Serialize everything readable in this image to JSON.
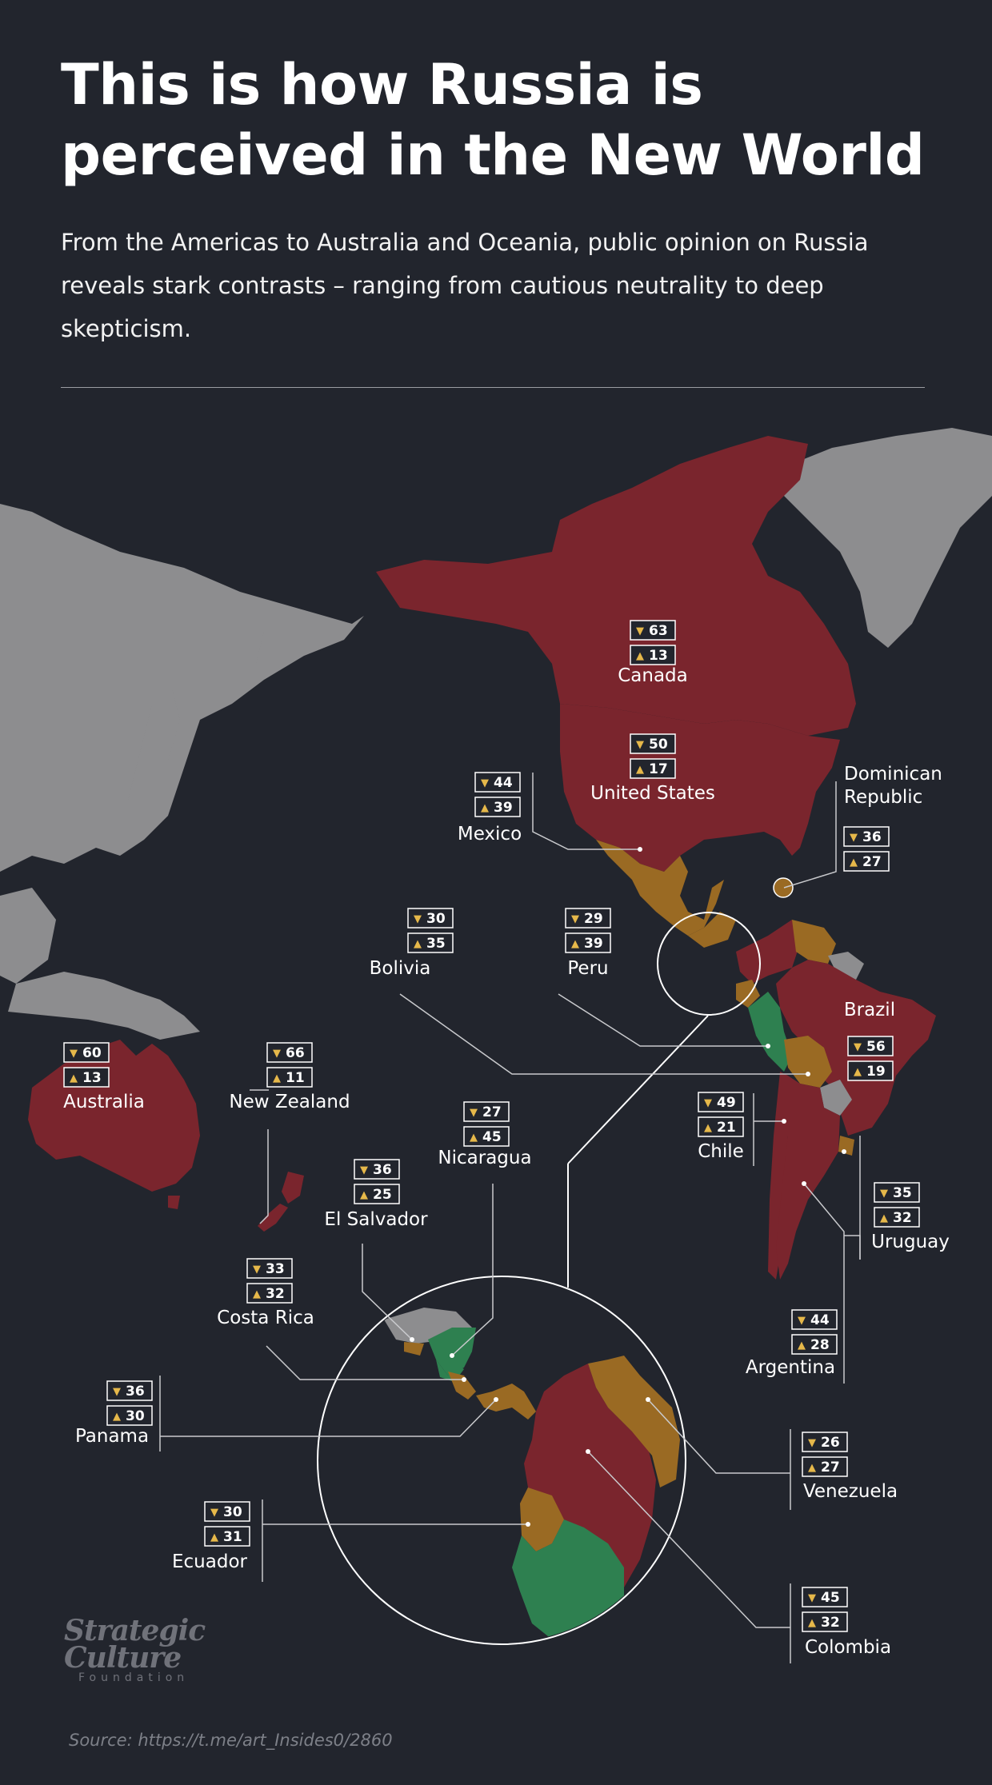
{
  "title_line1": "This is how Russia is",
  "title_line2": "perceived in the New World",
  "subtitle": "From the Americas to Australia and Oceania, public opinion on Russia reveals stark contrasts – ranging from cautious neutrality to deep skepticism.",
  "logo": {
    "line1": "Strategic",
    "line2": "Culture",
    "line3": "Foundation"
  },
  "source": "Source: https://t.me/art_Insides0/2860",
  "colors": {
    "negative": "#7a252d",
    "mixed": "#9a6a23",
    "positive": "#2e8050",
    "no_data": "#8d8d8f",
    "background": "#22252d",
    "thumb_icon": "#e6b84a"
  },
  "icons": {
    "dislike": "thumbs-down-icon",
    "like": "thumbs-up-icon"
  },
  "countries": [
    {
      "name": "Canada",
      "negative": 63,
      "positive": 13
    },
    {
      "name": "United States",
      "negative": 50,
      "positive": 17
    },
    {
      "name": "Mexico",
      "negative": 44,
      "positive": 39
    },
    {
      "name": "Dominican Republic",
      "negative": 36,
      "positive": 27
    },
    {
      "name": "Bolivia",
      "negative": 30,
      "positive": 35
    },
    {
      "name": "Peru",
      "negative": 29,
      "positive": 39
    },
    {
      "name": "Brazil",
      "negative": 56,
      "positive": 19
    },
    {
      "name": "Australia",
      "negative": 60,
      "positive": 13
    },
    {
      "name": "New Zealand",
      "negative": 66,
      "positive": 11
    },
    {
      "name": "Nicaragua",
      "negative": 27,
      "positive": 45
    },
    {
      "name": "Chile",
      "negative": 49,
      "positive": 21
    },
    {
      "name": "El Salvador",
      "negative": 36,
      "positive": 25
    },
    {
      "name": "Uruguay",
      "negative": 35,
      "positive": 32
    },
    {
      "name": "Costa Rica",
      "negative": 33,
      "positive": 32
    },
    {
      "name": "Argentina",
      "negative": 44,
      "positive": 28
    },
    {
      "name": "Panama",
      "negative": 36,
      "positive": 30
    },
    {
      "name": "Venezuela",
      "negative": 26,
      "positive": 27
    },
    {
      "name": "Ecuador",
      "negative": 30,
      "positive": 31
    },
    {
      "name": "Colombia",
      "negative": 45,
      "positive": 32
    }
  ]
}
